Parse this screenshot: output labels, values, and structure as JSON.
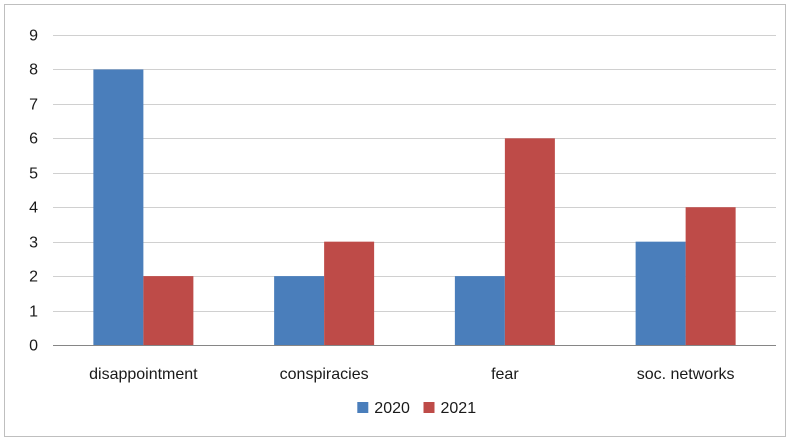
{
  "chart_data": {
    "type": "bar",
    "categories": [
      "disappointment",
      "conspiracies",
      "fear",
      "soc. networks"
    ],
    "series": [
      {
        "name": "2020",
        "values": [
          8,
          2,
          2,
          3
        ],
        "color": "#4a7ebb"
      },
      {
        "name": "2021",
        "values": [
          2,
          3,
          6,
          4
        ],
        "color": "#be4b48"
      }
    ],
    "ylim": [
      0,
      9
    ],
    "yticks": [
      0,
      1,
      2,
      3,
      4,
      5,
      6,
      7,
      8,
      9
    ],
    "grid": true,
    "legend_position": "bottom",
    "title": "",
    "xlabel": "",
    "ylabel": ""
  }
}
